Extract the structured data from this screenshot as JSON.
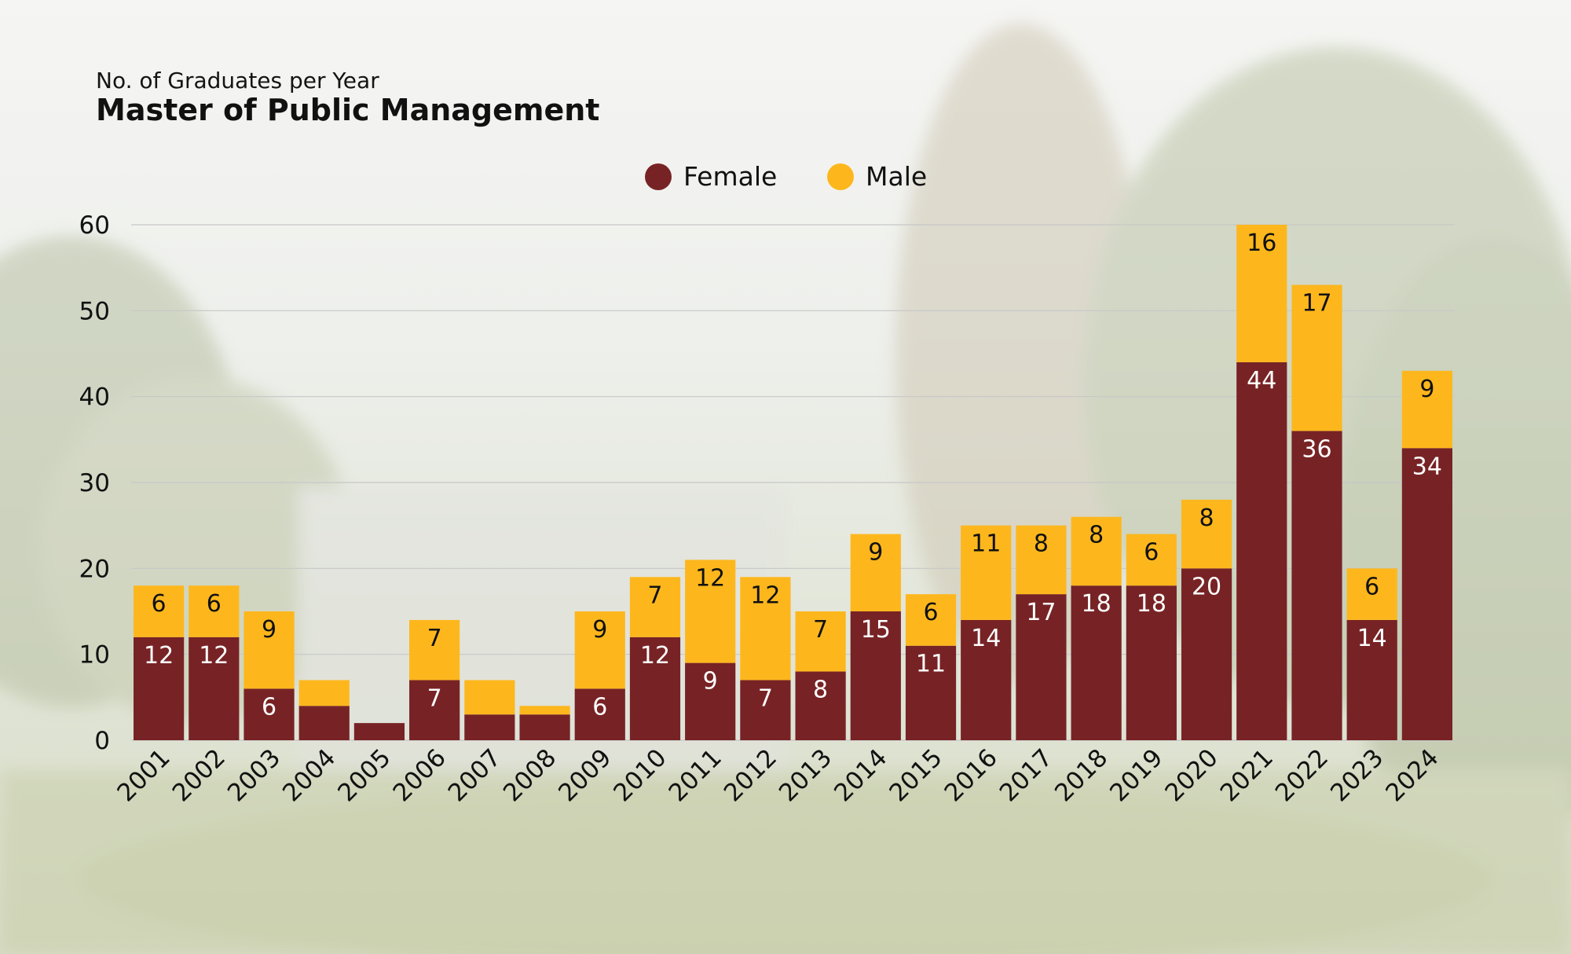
{
  "colors": {
    "female": "#772325",
    "male": "#FDB71D",
    "grid": "#c7c7c7",
    "text": "#111111"
  },
  "chart_data": {
    "type": "bar",
    "stacked": true,
    "subtitle": "No. of Graduates per Year",
    "title": "Master of Public Management",
    "xlabel": "",
    "ylabel": "",
    "ylim": [
      0,
      60
    ],
    "yticks": [
      0,
      10,
      20,
      30,
      40,
      50,
      60
    ],
    "legend_position": "top-center",
    "categories": [
      "2001",
      "2002",
      "2003",
      "2004",
      "2005",
      "2006",
      "2007",
      "2008",
      "2009",
      "2010",
      "2011",
      "2012",
      "2013",
      "2014",
      "2015",
      "2016",
      "2017",
      "2018",
      "2019",
      "2020",
      "2021",
      "2022",
      "2023",
      "2024"
    ],
    "series": [
      {
        "name": "Female",
        "key": "female",
        "values": [
          12,
          12,
          6,
          4,
          2,
          7,
          3,
          3,
          6,
          12,
          9,
          7,
          8,
          15,
          11,
          14,
          17,
          18,
          18,
          20,
          44,
          36,
          14,
          34
        ],
        "labels": [
          "12",
          "12",
          "6",
          "",
          "",
          "7",
          "",
          "",
          "6",
          "12",
          "9",
          "7",
          "8",
          "15",
          "11",
          "14",
          "17",
          "18",
          "18",
          "20",
          "44",
          "36",
          "14",
          "34"
        ]
      },
      {
        "name": "Male",
        "key": "male",
        "values": [
          6,
          6,
          9,
          3,
          0,
          7,
          4,
          1,
          9,
          7,
          12,
          12,
          7,
          9,
          6,
          11,
          8,
          8,
          6,
          8,
          16,
          17,
          6,
          9
        ],
        "labels": [
          "6",
          "6",
          "9",
          "",
          "",
          "7",
          "",
          "",
          "9",
          "7",
          "12",
          "12",
          "7",
          "9",
          "6",
          "11",
          "8",
          "8",
          "6",
          "8",
          "16",
          "17",
          "6",
          "9"
        ]
      }
    ]
  }
}
